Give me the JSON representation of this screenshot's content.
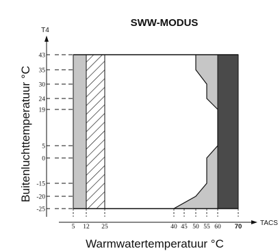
{
  "chart_data": {
    "type": "area",
    "title": "SWW-MODUS",
    "xlabel": "Warmwatertemperatuur °C",
    "ylabel": "Buitenluchttemperatuur °C",
    "x_axis_name": "TACS",
    "y_axis_name": "T4",
    "x_ticks": [
      "5",
      "12",
      "25",
      "40",
      "45",
      "50",
      "55",
      "60",
      "70"
    ],
    "y_ticks": [
      "43",
      "35",
      "30",
      "24",
      "19",
      "5",
      "0",
      "-15",
      "-20",
      "-25"
    ],
    "xlim": [
      0,
      70
    ],
    "ylim": [
      -25,
      43
    ],
    "bands": [
      {
        "name": "light-band-left",
        "x": [
          5,
          12
        ],
        "fill": "#c6c6c6"
      },
      {
        "name": "hatched-band",
        "x": [
          12,
          25
        ],
        "fill": "hatch"
      },
      {
        "name": "dark-band-right",
        "x": [
          60,
          70
        ],
        "fill": "#4a4a4a"
      }
    ],
    "boundary_curve": {
      "x": [
        50,
        50,
        55,
        55,
        60,
        60,
        55,
        55,
        50,
        40
      ],
      "y": [
        43,
        35,
        30,
        24,
        19,
        5,
        0,
        -15,
        -20,
        -25
      ]
    },
    "colors": {
      "light": "#c6c6c6",
      "dark": "#4a4a4a",
      "line": "#111111"
    }
  }
}
